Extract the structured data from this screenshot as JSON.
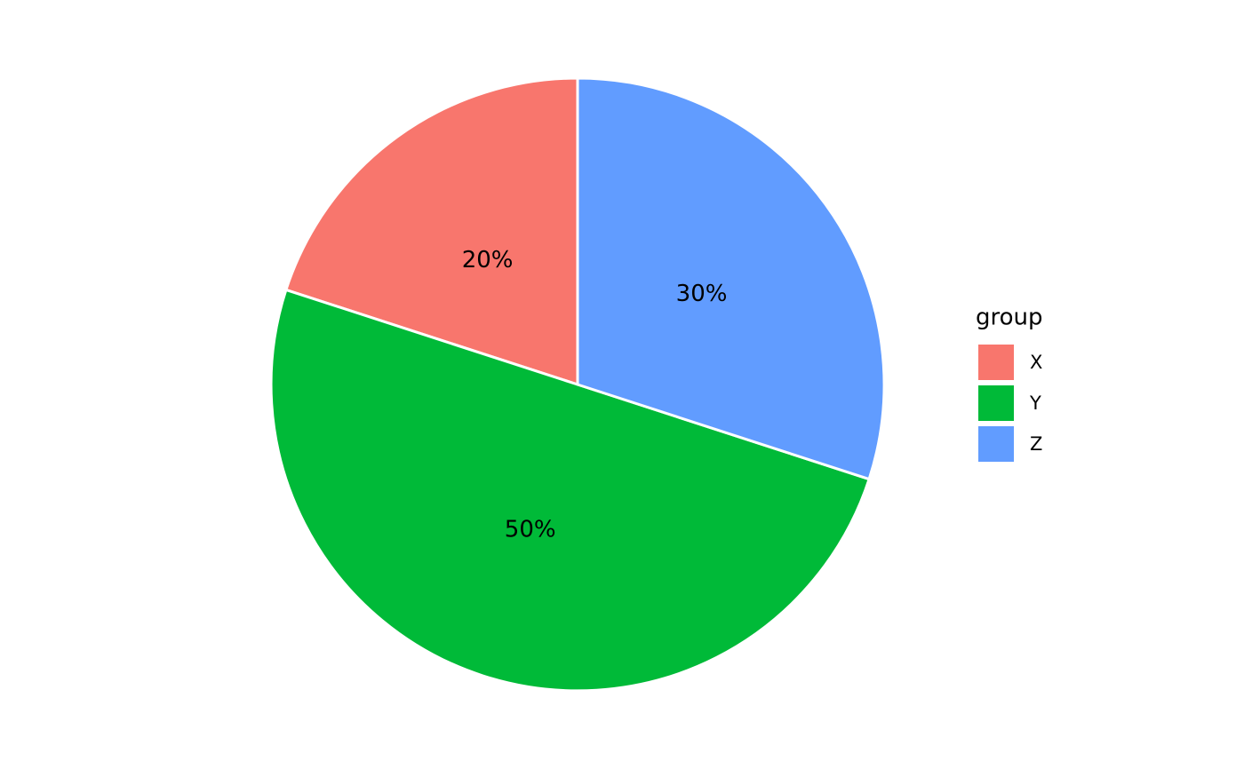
{
  "chart_data": {
    "type": "pie",
    "categories": [
      "X",
      "Y",
      "Z"
    ],
    "values": [
      20,
      50,
      30
    ],
    "value_labels": [
      "20%",
      "50%",
      "30%"
    ],
    "colors": [
      "#f8766d",
      "#00ba38",
      "#619cff"
    ],
    "legend_title": "group",
    "legend_position": "right"
  }
}
